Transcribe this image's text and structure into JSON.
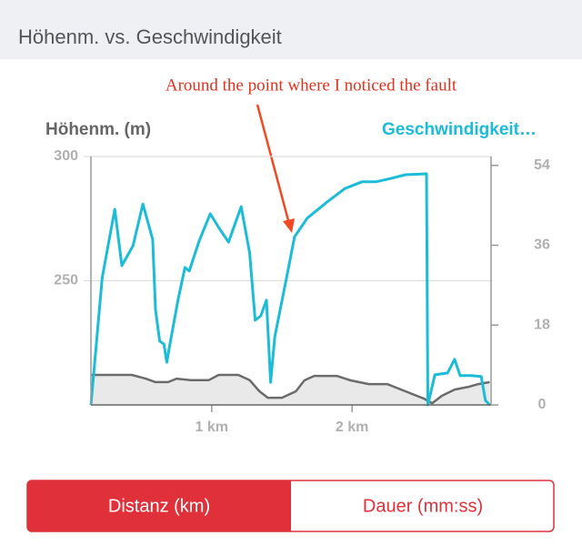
{
  "header": {
    "title": "Höhenm. vs. Geschwindigkeit"
  },
  "tabs": [
    "Distanz (km)",
    "Dauer (mm:ss)"
  ],
  "chart_data": {
    "type": "line",
    "annotation": "Around the point where I noticed the fault",
    "ylabel": "Höhenm. (m)",
    "y2label": "Geschwindigkeit…",
    "xlim": [
      0.14,
      2.99
    ],
    "xticks": [
      {
        "value": 1,
        "label": "1 km"
      },
      {
        "value": 2,
        "label": "2 km"
      }
    ],
    "ylim": [
      200,
      300
    ],
    "yticks": [
      250,
      300
    ],
    "y2lim": [
      0,
      56
    ],
    "y2ticks": [
      0,
      18,
      36,
      54
    ],
    "grid": true,
    "series": [
      {
        "name": "Höhenm. (m)",
        "color": "#6b6b6b",
        "fill": "#e9e9e9",
        "x": [
          0.14,
          0.27,
          0.43,
          0.53,
          0.6,
          0.69,
          0.75,
          0.85,
          0.98,
          1.05,
          1.19,
          1.27,
          1.34,
          1.4,
          1.5,
          1.6,
          1.66,
          1.73,
          1.89,
          1.99,
          2.12,
          2.25,
          2.38,
          2.51,
          2.57,
          2.64,
          2.73,
          2.83,
          2.9,
          2.98
        ],
        "values": [
          212.1,
          212.1,
          212.1,
          210.6,
          209.2,
          209.2,
          210.6,
          210,
          210,
          212.1,
          212.1,
          210,
          205.5,
          202.9,
          202.9,
          205.5,
          209.9,
          211.7,
          211.7,
          209.9,
          208.4,
          208.4,
          205.5,
          202.6,
          200.7,
          203.7,
          206.2,
          207.3,
          208.4,
          209.2
        ]
      },
      {
        "name": "Geschwindigkeit…",
        "color": "#1cbcd6",
        "axis": "y2",
        "x": [
          0.14,
          0.22,
          0.31,
          0.36,
          0.44,
          0.51,
          0.58,
          0.6,
          0.63,
          0.66,
          0.68,
          0.7,
          0.76,
          0.81,
          0.84,
          0.91,
          0.99,
          1.05,
          1.12,
          1.21,
          1.27,
          1.31,
          1.35,
          1.39,
          1.42,
          1.45,
          1.54,
          1.59,
          1.68,
          1.82,
          1.95,
          2.07,
          2.17,
          2.28,
          2.38,
          2.53,
          2.54,
          2.59,
          2.68,
          2.73,
          2.77,
          2.85,
          2.92,
          2.95,
          2.98
        ],
        "values": [
          0,
          28.7,
          44.1,
          31.4,
          35.9,
          45.3,
          37.3,
          21.5,
          14.4,
          13.7,
          9.6,
          13.3,
          23.6,
          31.0,
          30.2,
          36.9,
          43.1,
          40.0,
          36.7,
          44.7,
          34.3,
          19.1,
          20.1,
          23.6,
          5.1,
          15.4,
          29.7,
          37.9,
          42.1,
          45.7,
          48.8,
          50.3,
          50.3,
          51.1,
          51.9,
          52.1,
          0,
          6.8,
          7.2,
          10.3,
          6.6,
          6.6,
          6.4,
          1.0,
          0
        ]
      }
    ]
  }
}
